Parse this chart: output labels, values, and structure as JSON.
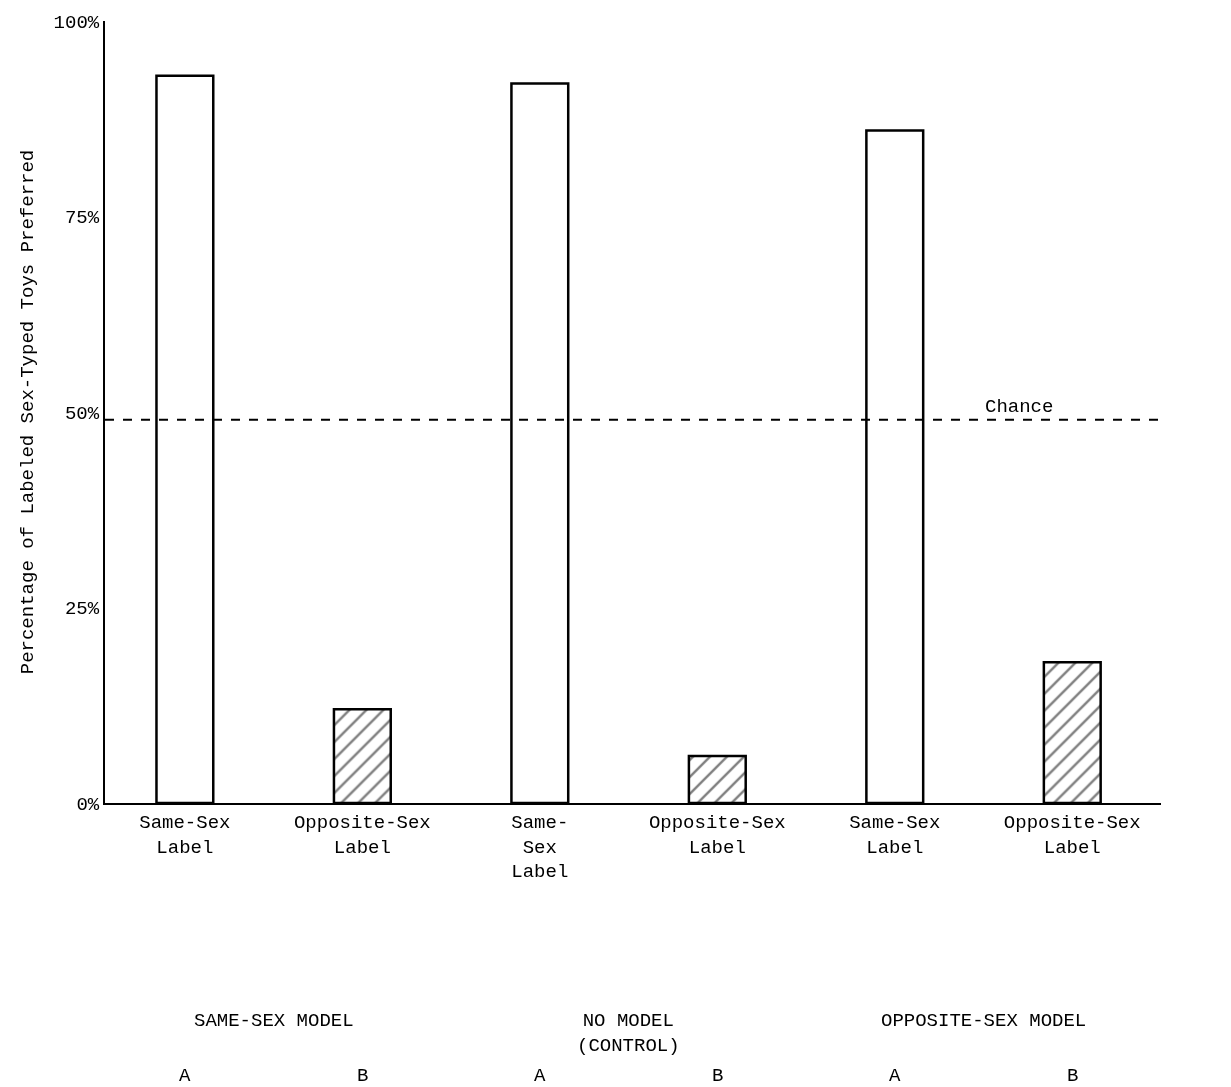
{
  "chart_data": {
    "type": "bar",
    "ylabel": "Percentage of Labeled Sex-Typed Toys Preferred",
    "categories": [
      "Same-Sex\nLabel",
      "Opposite-Sex\nLabel",
      "Same-\nSex\nLabel",
      "Opposite-Sex\nLabel",
      "Same-Sex\nLabel",
      "Opposite-Sex\nLabel"
    ],
    "values": [
      93,
      12,
      92,
      6,
      86,
      18
    ],
    "colors": [
      "#ffffff",
      "#000000",
      "#ffffff",
      "#000000",
      "#ffffff",
      "#000000"
    ],
    "ylim": [
      0,
      100
    ],
    "yticks": [
      {
        "value": 0,
        "label": "0%"
      },
      {
        "value": 25,
        "label": "25%"
      },
      {
        "value": 50,
        "label": "50%"
      },
      {
        "value": 75,
        "label": "75%"
      },
      {
        "value": 100,
        "label": "100%"
      }
    ],
    "ref_lines": [
      {
        "axis": "y",
        "value": 49,
        "label": "Chance",
        "line_style": "dashed",
        "color": "#000000"
      }
    ],
    "annotations": [
      "SAME-SEX MODEL",
      "NO MODEL\n(CONTROL)",
      "OPPOSITE-SEX MODEL",
      "A",
      "B",
      "A",
      "B",
      "A",
      "B"
    ]
  }
}
